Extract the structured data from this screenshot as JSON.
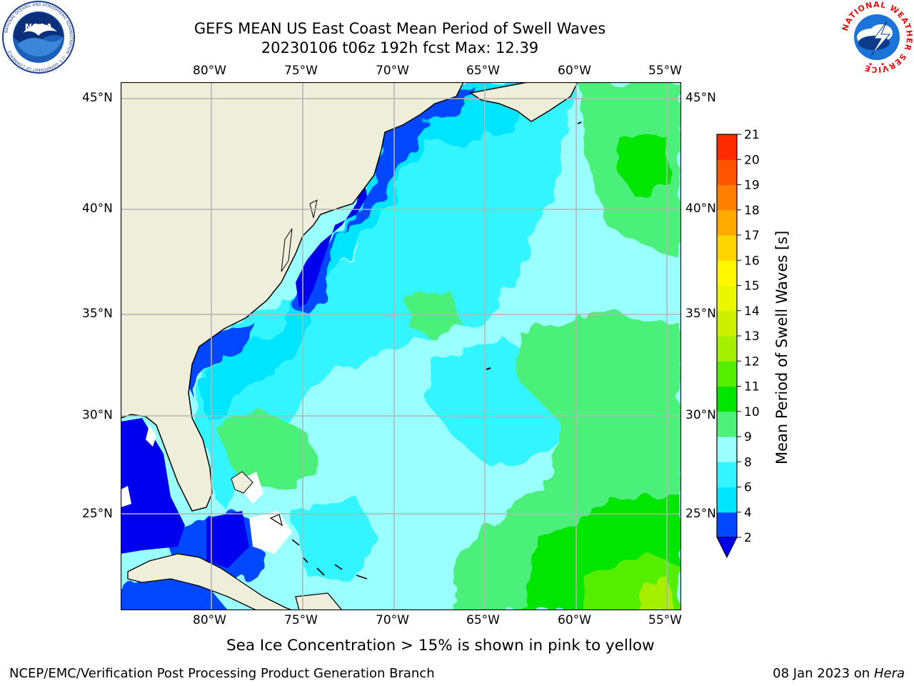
{
  "title": {
    "line1": "GEFS MEAN US East Coast Mean Period of Swell Waves",
    "line2": "20230106 t06z 192h fcst   Max: 12.39"
  },
  "map": {
    "lon_labels": [
      "80°W",
      "75°W",
      "70°W",
      "65°W",
      "60°W",
      "55°W"
    ],
    "lat_labels": [
      "45°N",
      "40°N",
      "35°N",
      "30°N",
      "25°N"
    ],
    "colors": {
      "land": "#efeedb",
      "coast": "#000000",
      "grid": "#b4b4b4",
      "missing": "#ffffff"
    }
  },
  "colorbar": {
    "label": "Mean Period of Swell Waves [s]",
    "ticks": [
      "2",
      "4",
      "6",
      "8",
      "9",
      "10",
      "11",
      "12",
      "13",
      "14",
      "15",
      "16",
      "17",
      "18",
      "19",
      "20",
      "21"
    ],
    "colors": [
      "#0047ff",
      "#00e5ff",
      "#33f5ff",
      "#99ffff",
      "#4cf07a",
      "#00e600",
      "#55ee00",
      "#a6ef00",
      "#ccf000",
      "#e9f700",
      "#fff700",
      "#ffd500",
      "#ffaa00",
      "#ff8000",
      "#ff5500",
      "#ff2a00",
      "#ff0000"
    ],
    "underflow_color": "#0000ee"
  },
  "notes": {
    "ice": "Sea Ice Concentration > 15% is shown in pink to yellow"
  },
  "footer": {
    "left": "NCEP/EMC/Verification Post Processing Product Generation Branch",
    "right_date": "08 Jan 2023 on ",
    "right_host": "Hera"
  },
  "logos": {
    "left_icon": "noaa-logo",
    "left_text": "NOAA",
    "left_ring": "NATIONAL OCEANIC AND ATMOSPHERIC ADMINISTRATION · U.S. DEPARTMENT OF COMMERCE",
    "right_icon": "nws-logo",
    "right_ring": "NATIONAL WEATHER SERVICE"
  }
}
